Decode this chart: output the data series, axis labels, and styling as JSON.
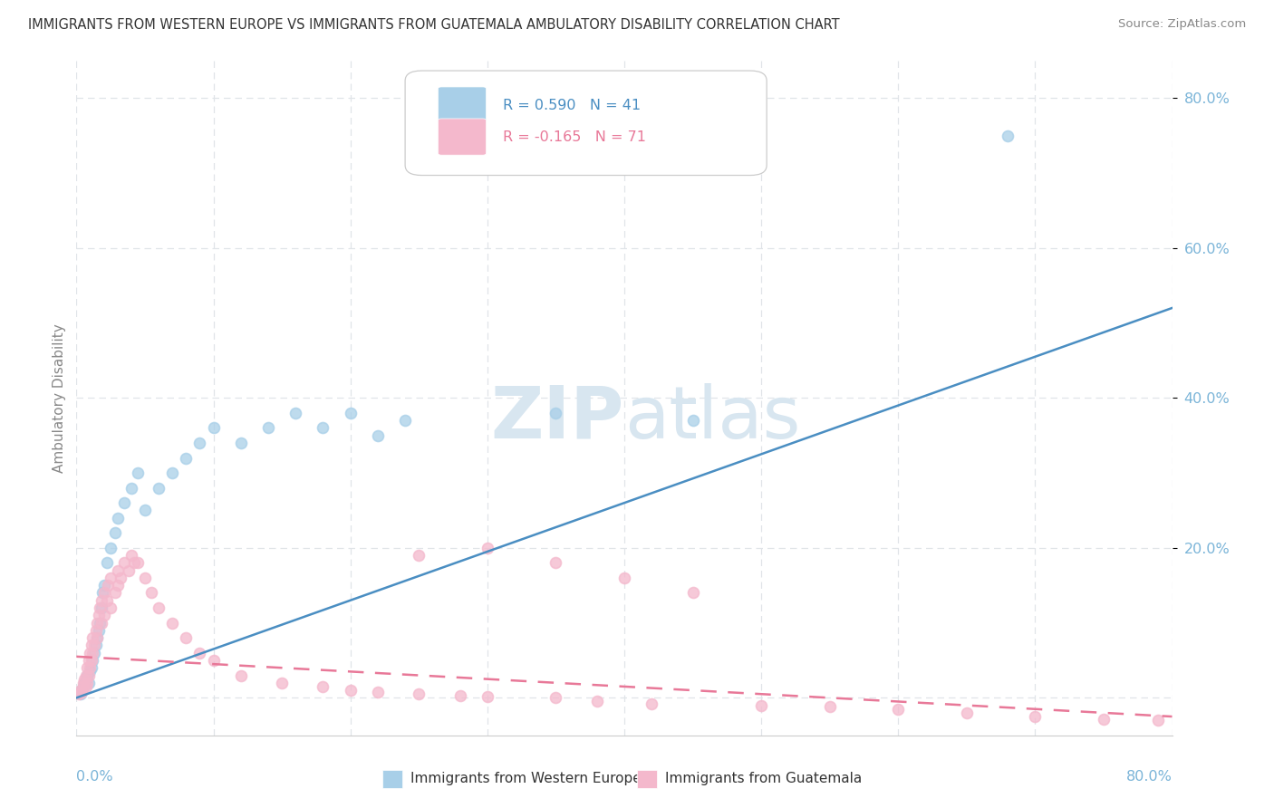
{
  "title": "IMMIGRANTS FROM WESTERN EUROPE VS IMMIGRANTS FROM GUATEMALA AMBULATORY DISABILITY CORRELATION CHART",
  "source": "Source: ZipAtlas.com",
  "ylabel": "Ambulatory Disability",
  "legend1_label": "Immigrants from Western Europe",
  "legend2_label": "Immigrants from Guatemala",
  "R1": 0.59,
  "N1": 41,
  "R2": -0.165,
  "N2": 71,
  "blue_scatter_color": "#a8cfe8",
  "pink_scatter_color": "#f4b8cc",
  "blue_line_color": "#4a8ec2",
  "pink_line_color": "#e87898",
  "background_color": "#ffffff",
  "grid_color": "#e0e4e8",
  "watermark_color": "#d8e6f0",
  "axis_label_color": "#7ab4d8",
  "ylabel_color": "#888888",
  "text_color": "#333333",
  "source_color": "#888888",
  "blue_x": [
    0.3,
    0.4,
    0.5,
    0.6,
    0.7,
    0.8,
    0.9,
    1.0,
    1.1,
    1.2,
    1.3,
    1.4,
    1.5,
    1.6,
    1.7,
    1.8,
    1.9,
    2.0,
    2.2,
    2.5,
    2.8,
    3.0,
    3.5,
    4.0,
    4.5,
    5.0,
    6.0,
    7.0,
    8.0,
    9.0,
    10.0,
    12.0,
    14.0,
    16.0,
    18.0,
    20.0,
    22.0,
    24.0,
    35.0,
    45.0,
    68.0
  ],
  "blue_y": [
    0.5,
    1.0,
    1.5,
    2.0,
    2.5,
    3.0,
    2.0,
    3.5,
    4.0,
    5.0,
    6.0,
    7.0,
    8.0,
    9.0,
    10.0,
    12.0,
    14.0,
    15.0,
    18.0,
    20.0,
    22.0,
    24.0,
    26.0,
    28.0,
    30.0,
    25.0,
    28.0,
    30.0,
    32.0,
    34.0,
    36.0,
    34.0,
    36.0,
    38.0,
    36.0,
    38.0,
    35.0,
    37.0,
    38.0,
    37.0,
    75.0
  ],
  "pink_x": [
    0.2,
    0.3,
    0.4,
    0.5,
    0.5,
    0.6,
    0.7,
    0.7,
    0.8,
    0.8,
    0.9,
    0.9,
    1.0,
    1.0,
    1.1,
    1.1,
    1.2,
    1.2,
    1.3,
    1.4,
    1.5,
    1.5,
    1.6,
    1.7,
    1.8,
    1.8,
    2.0,
    2.0,
    2.2,
    2.3,
    2.5,
    2.5,
    2.8,
    3.0,
    3.0,
    3.2,
    3.5,
    3.8,
    4.0,
    4.2,
    4.5,
    5.0,
    5.5,
    6.0,
    7.0,
    8.0,
    9.0,
    10.0,
    12.0,
    15.0,
    18.0,
    20.0,
    22.0,
    25.0,
    28.0,
    30.0,
    35.0,
    38.0,
    42.0,
    50.0,
    55.0,
    60.0,
    65.0,
    70.0,
    75.0,
    79.0,
    25.0,
    30.0,
    35.0,
    40.0,
    45.0
  ],
  "pink_y": [
    0.5,
    1.0,
    0.8,
    1.5,
    2.0,
    2.5,
    1.5,
    3.0,
    2.0,
    4.0,
    3.0,
    5.0,
    4.0,
    6.0,
    5.0,
    7.0,
    6.0,
    8.0,
    7.0,
    9.0,
    8.0,
    10.0,
    11.0,
    12.0,
    10.0,
    13.0,
    11.0,
    14.0,
    13.0,
    15.0,
    12.0,
    16.0,
    14.0,
    15.0,
    17.0,
    16.0,
    18.0,
    17.0,
    19.0,
    18.0,
    18.0,
    16.0,
    14.0,
    12.0,
    10.0,
    8.0,
    6.0,
    5.0,
    3.0,
    2.0,
    1.5,
    1.0,
    0.8,
    0.5,
    0.3,
    0.2,
    0.1,
    -0.5,
    -0.8,
    -1.0,
    -1.2,
    -1.5,
    -2.0,
    -2.5,
    -2.8,
    -3.0,
    19.0,
    20.0,
    18.0,
    16.0,
    14.0
  ],
  "blue_line_x0": 0,
  "blue_line_y0": 0.0,
  "blue_line_x1": 80,
  "blue_line_y1": 52.0,
  "pink_line_x0": 0,
  "pink_line_y0": 5.5,
  "pink_line_x1": 80,
  "pink_line_y1": -2.5,
  "xlim": [
    0,
    80
  ],
  "ylim": [
    -5,
    85
  ],
  "figsize": [
    14.06,
    8.92
  ],
  "dpi": 100
}
